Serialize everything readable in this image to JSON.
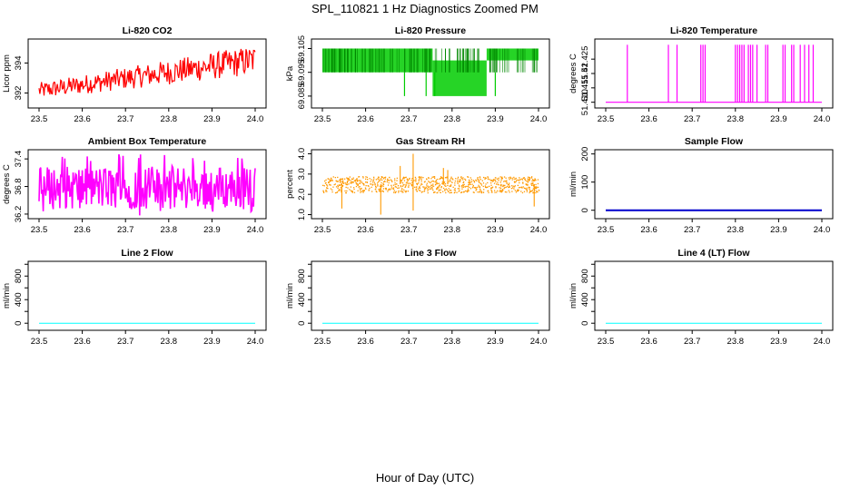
{
  "figure": {
    "title": "SPL_110821  1 Hz Diagnostics Zoomed PM",
    "xlabel": "Hour of Day (UTC)"
  },
  "chart_data": [
    {
      "id": "co2",
      "type": "line",
      "title": "Li-820 CO2",
      "ylabel": "Licor ppm",
      "color": "#ff0000",
      "style": "noisy_trend",
      "xlim": [
        23.5,
        24.0
      ],
      "ylim": [
        391.0,
        395.6
      ],
      "xticks": [
        23.5,
        23.6,
        23.7,
        23.8,
        23.9,
        24.0
      ],
      "xtick_labels": [
        "23.5",
        "23.6",
        "23.7",
        "23.8",
        "23.9",
        "24.0"
      ],
      "yticks": [
        392,
        394
      ],
      "ytick_labels": [
        "392",
        "394"
      ],
      "series": [
        {
          "name": "CO2",
          "x_start": 23.5,
          "x_end": 24.0,
          "low_start": 391.6,
          "low_end": 393.2,
          "high_start": 392.7,
          "high_end": 395.2
        }
      ]
    },
    {
      "id": "pressure",
      "type": "line",
      "title": "Li-820 Pressure",
      "ylabel": "kPa",
      "color": "#00cc00",
      "style": "discrete_levels",
      "xlim": [
        23.5,
        24.0
      ],
      "ylim": [
        69.08,
        69.109
      ],
      "xticks": [
        23.5,
        23.6,
        23.7,
        23.8,
        23.9,
        24.0
      ],
      "xtick_labels": [
        "23.5",
        "23.6",
        "23.7",
        "23.8",
        "23.9",
        "24.0"
      ],
      "yticks": [
        69.085,
        69.095,
        69.105
      ],
      "ytick_labels": [
        "69.085",
        "69.095",
        "69.105"
      ],
      "levels": [
        69.085,
        69.095,
        69.1,
        69.105
      ],
      "segments": [
        {
          "x0": 23.5,
          "x1": 23.69,
          "lo": 69.095,
          "hi": 69.105
        },
        {
          "x0": 23.69,
          "x1": 23.755,
          "lo": 69.095,
          "hi": 69.105
        },
        {
          "x0": 23.755,
          "x1": 23.88,
          "lo": 69.085,
          "hi": 69.1
        },
        {
          "x0": 23.88,
          "x1": 24.0,
          "lo": 69.1,
          "hi": 69.105
        }
      ],
      "spikes": [
        23.69,
        23.74,
        23.76,
        23.9
      ]
    },
    {
      "id": "temperature",
      "type": "line",
      "title": "Li-820 Temperature",
      "ylabel": "degrees C",
      "color": "#ff00ff",
      "style": "baseline_spikes",
      "xlim": [
        23.5,
        24.0
      ],
      "ylim": [
        51.408,
        51.432
      ],
      "xticks": [
        23.5,
        23.6,
        23.7,
        23.8,
        23.9,
        24.0
      ],
      "xtick_labels": [
        "23.5",
        "23.6",
        "23.7",
        "23.8",
        "23.9",
        "24.0"
      ],
      "yticks": [
        51.41,
        51.415,
        51.42,
        51.425
      ],
      "ytick_labels": [
        "51.410",
        "51.415",
        "51.42",
        "51.425"
      ],
      "baseline": 51.41,
      "spike_top": 51.43,
      "spikes": [
        23.55,
        23.645,
        23.665,
        23.72,
        23.725,
        23.73,
        23.8,
        23.805,
        23.81,
        23.815,
        23.82,
        23.83,
        23.835,
        23.84,
        23.85,
        23.87,
        23.875,
        23.91,
        23.915,
        23.93,
        23.935,
        23.95,
        23.96,
        23.97,
        23.98
      ]
    },
    {
      "id": "ambient",
      "type": "line",
      "title": "Ambient Box Temperature",
      "ylabel": "degrees C",
      "color": "#ff00ff",
      "style": "dense_band",
      "xlim": [
        23.5,
        24.0
      ],
      "ylim": [
        36.1,
        37.6
      ],
      "xticks": [
        23.5,
        23.6,
        23.7,
        23.8,
        23.9,
        24.0
      ],
      "xtick_labels": [
        "23.5",
        "23.6",
        "23.7",
        "23.8",
        "23.9",
        "24.0"
      ],
      "yticks": [
        36.2,
        36.8,
        37.4
      ],
      "ytick_labels": [
        "36.2",
        "36.8",
        "37.4"
      ],
      "band_low": 36.3,
      "band_high": 37.25,
      "outlier_low": 36.15,
      "outlier_high": 37.5
    },
    {
      "id": "rh",
      "type": "line",
      "title": "Gas Stream RH",
      "ylabel": "percent",
      "color": "#ff9900",
      "style": "dotted_band",
      "xlim": [
        23.5,
        24.0
      ],
      "ylim": [
        0.8,
        4.2
      ],
      "xticks": [
        23.5,
        23.6,
        23.7,
        23.8,
        23.9,
        24.0
      ],
      "xtick_labels": [
        "23.5",
        "23.6",
        "23.7",
        "23.8",
        "23.9",
        "24.0"
      ],
      "yticks": [
        1.0,
        2.0,
        3.0,
        4.0
      ],
      "ytick_labels": [
        "1.0",
        "2.0",
        "3.0",
        "4.0"
      ],
      "band_low": 2.1,
      "band_high": 2.9,
      "outliers": [
        {
          "x": 23.545,
          "y": 1.3
        },
        {
          "x": 23.635,
          "y": 1.0
        },
        {
          "x": 23.68,
          "y": 3.4
        },
        {
          "x": 23.71,
          "y": 4.0
        },
        {
          "x": 23.71,
          "y": 1.2
        },
        {
          "x": 23.78,
          "y": 3.3
        },
        {
          "x": 23.79,
          "y": 3.2
        },
        {
          "x": 23.99,
          "y": 1.4
        }
      ]
    },
    {
      "id": "sample_flow",
      "type": "line",
      "title": "Sample Flow",
      "ylabel": "ml/min",
      "color": "#0000cc",
      "style": "flat",
      "xlim": [
        23.5,
        24.0
      ],
      "ylim": [
        -30,
        215
      ],
      "xticks": [
        23.5,
        23.6,
        23.7,
        23.8,
        23.9,
        24.0
      ],
      "xtick_labels": [
        "23.5",
        "23.6",
        "23.7",
        "23.8",
        "23.9",
        "24.0"
      ],
      "yticks": [
        0,
        100,
        200
      ],
      "ytick_labels": [
        "0",
        "100",
        "200"
      ],
      "series": [
        {
          "name": "Sample Flow",
          "x": [
            23.5,
            24.0
          ],
          "y": [
            0,
            0
          ]
        }
      ],
      "line_width": 2
    },
    {
      "id": "line2",
      "type": "line",
      "title": "Line 2 Flow",
      "ylabel": "ml/min",
      "color": "#00ffff",
      "style": "flat",
      "xlim": [
        23.5,
        24.0
      ],
      "ylim": [
        -120,
        1050
      ],
      "xticks": [
        23.5,
        23.6,
        23.7,
        23.8,
        23.9,
        24.0
      ],
      "xtick_labels": [
        "23.5",
        "23.6",
        "23.7",
        "23.8",
        "23.9",
        "24.0"
      ],
      "yticks": [
        0,
        200,
        400,
        600,
        800,
        1000
      ],
      "ytick_labels": [
        "0",
        "",
        "400",
        "",
        "800",
        ""
      ],
      "series": [
        {
          "name": "Line 2 Flow",
          "x": [
            23.5,
            24.0
          ],
          "y": [
            0,
            0
          ]
        }
      ],
      "line_width": 1
    },
    {
      "id": "line3",
      "type": "line",
      "title": "Line 3 Flow",
      "ylabel": "ml/min",
      "color": "#00ffff",
      "style": "flat",
      "xlim": [
        23.5,
        24.0
      ],
      "ylim": [
        -120,
        1050
      ],
      "xticks": [
        23.5,
        23.6,
        23.7,
        23.8,
        23.9,
        24.0
      ],
      "xtick_labels": [
        "23.5",
        "23.6",
        "23.7",
        "23.8",
        "23.9",
        "24.0"
      ],
      "yticks": [
        0,
        200,
        400,
        600,
        800,
        1000
      ],
      "ytick_labels": [
        "0",
        "",
        "400",
        "",
        "800",
        ""
      ],
      "series": [
        {
          "name": "Line 3 Flow",
          "x": [
            23.5,
            24.0
          ],
          "y": [
            0,
            0
          ]
        }
      ],
      "line_width": 1
    },
    {
      "id": "line4",
      "type": "line",
      "title": "Line 4 (LT) Flow",
      "ylabel": "ml/min",
      "color": "#00ffff",
      "style": "flat",
      "xlim": [
        23.5,
        24.0
      ],
      "ylim": [
        -120,
        1050
      ],
      "xticks": [
        23.5,
        23.6,
        23.7,
        23.8,
        23.9,
        24.0
      ],
      "xtick_labels": [
        "23.5",
        "23.6",
        "23.7",
        "23.8",
        "23.9",
        "24.0"
      ],
      "yticks": [
        0,
        200,
        400,
        600,
        800,
        1000
      ],
      "ytick_labels": [
        "0",
        "",
        "400",
        "",
        "800",
        ""
      ],
      "series": [
        {
          "name": "Line 4 Flow",
          "x": [
            23.5,
            24.0
          ],
          "y": [
            0,
            0
          ]
        }
      ],
      "line_width": 1
    }
  ]
}
